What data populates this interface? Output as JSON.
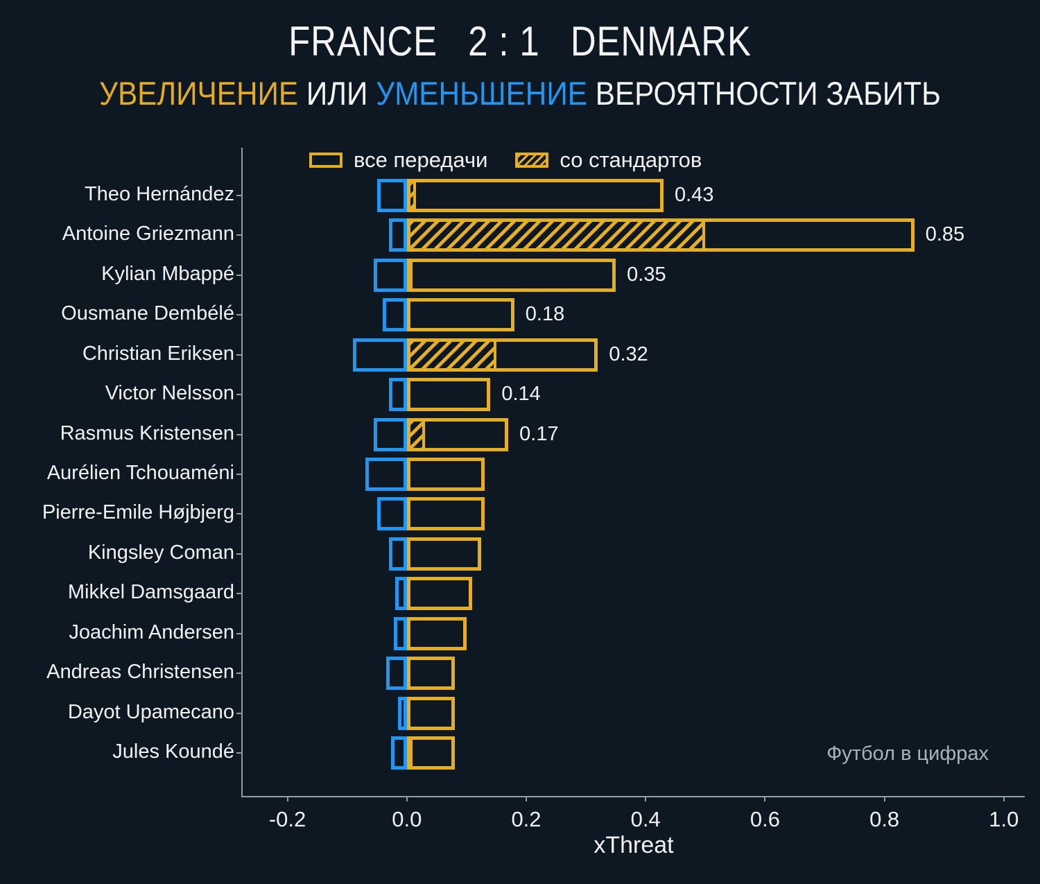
{
  "title": {
    "home": "FRANCE",
    "score": "2 : 1",
    "away": "DENMARK"
  },
  "subtitle": {
    "increase": "УВЕЛИЧЕНИЕ",
    "middle": " ИЛИ ",
    "decrease": "УМЕНЬШЕНИЕ",
    "tail": " ВЕРОЯТНОСТИ ЗАБИТЬ"
  },
  "legend": {
    "all_passes": "все передачи",
    "set_pieces": "со стандартов"
  },
  "watermark": "Футбол в цифрах",
  "colors": {
    "background": "#0e1822",
    "positive_gold": "#e5af1f",
    "negative_blue": "#2196f3",
    "axis": "#8fa0a3",
    "text": "#f2f2f2",
    "watermark_text": "#a9b3b9"
  },
  "chart_data": {
    "type": "bar",
    "orientation": "horizontal",
    "xlabel": "xThreat",
    "xlim": [
      -0.275,
      1.035
    ],
    "xticks": [
      -0.2,
      0.0,
      0.2,
      0.4,
      0.6,
      0.8,
      1.0
    ],
    "xtick_labels": [
      "-0.2",
      "0.0",
      "0.2",
      "0.4",
      "0.6",
      "0.8",
      "1.0"
    ],
    "grid": false,
    "legend_position": "top-inside",
    "series_meaning": {
      "positive": "увеличение вероятности забить (все передачи)",
      "set_piece": "часть со стандартов (штриховка)",
      "negative": "уменьшение вероятности забить"
    },
    "players": [
      {
        "name": "Theo Hernández",
        "positive": 0.43,
        "set_piece": 0.015,
        "negative": -0.05,
        "label": "0.43"
      },
      {
        "name": "Antoine Griezmann",
        "positive": 0.85,
        "set_piece": 0.5,
        "negative": -0.03,
        "label": "0.85"
      },
      {
        "name": "Kylian Mbappé",
        "positive": 0.35,
        "set_piece": 0.01,
        "negative": -0.055,
        "label": "0.35"
      },
      {
        "name": "Ousmane Dembélé",
        "positive": 0.18,
        "set_piece": 0,
        "negative": -0.04,
        "label": "0.18"
      },
      {
        "name": "Christian Eriksen",
        "positive": 0.32,
        "set_piece": 0.15,
        "negative": -0.09,
        "label": "0.32"
      },
      {
        "name": "Victor Nelsson",
        "positive": 0.14,
        "set_piece": 0,
        "negative": -0.03,
        "label": "0.14"
      },
      {
        "name": "Rasmus Kristensen",
        "positive": 0.17,
        "set_piece": 0.03,
        "negative": -0.055,
        "label": "0.17"
      },
      {
        "name": "Aurélien Tchouaméni",
        "positive": 0.13,
        "set_piece": 0,
        "negative": -0.07,
        "label": ""
      },
      {
        "name": "Pierre-Emile Højbjerg",
        "positive": 0.13,
        "set_piece": 0,
        "negative": -0.05,
        "label": ""
      },
      {
        "name": "Kingsley Coman",
        "positive": 0.125,
        "set_piece": 0,
        "negative": -0.03,
        "label": ""
      },
      {
        "name": "Mikkel Damsgaard",
        "positive": 0.11,
        "set_piece": 0,
        "negative": -0.02,
        "label": ""
      },
      {
        "name": "Joachim Andersen",
        "positive": 0.1,
        "set_piece": 0,
        "negative": -0.022,
        "label": ""
      },
      {
        "name": "Andreas Christensen",
        "positive": 0.08,
        "set_piece": 0,
        "negative": -0.035,
        "label": ""
      },
      {
        "name": "Dayot Upamecano",
        "positive": 0.08,
        "set_piece": 0,
        "negative": -0.015,
        "label": ""
      },
      {
        "name": "Jules Koundé",
        "positive": 0.08,
        "set_piece": 0.01,
        "negative": -0.027,
        "label": ""
      }
    ]
  }
}
